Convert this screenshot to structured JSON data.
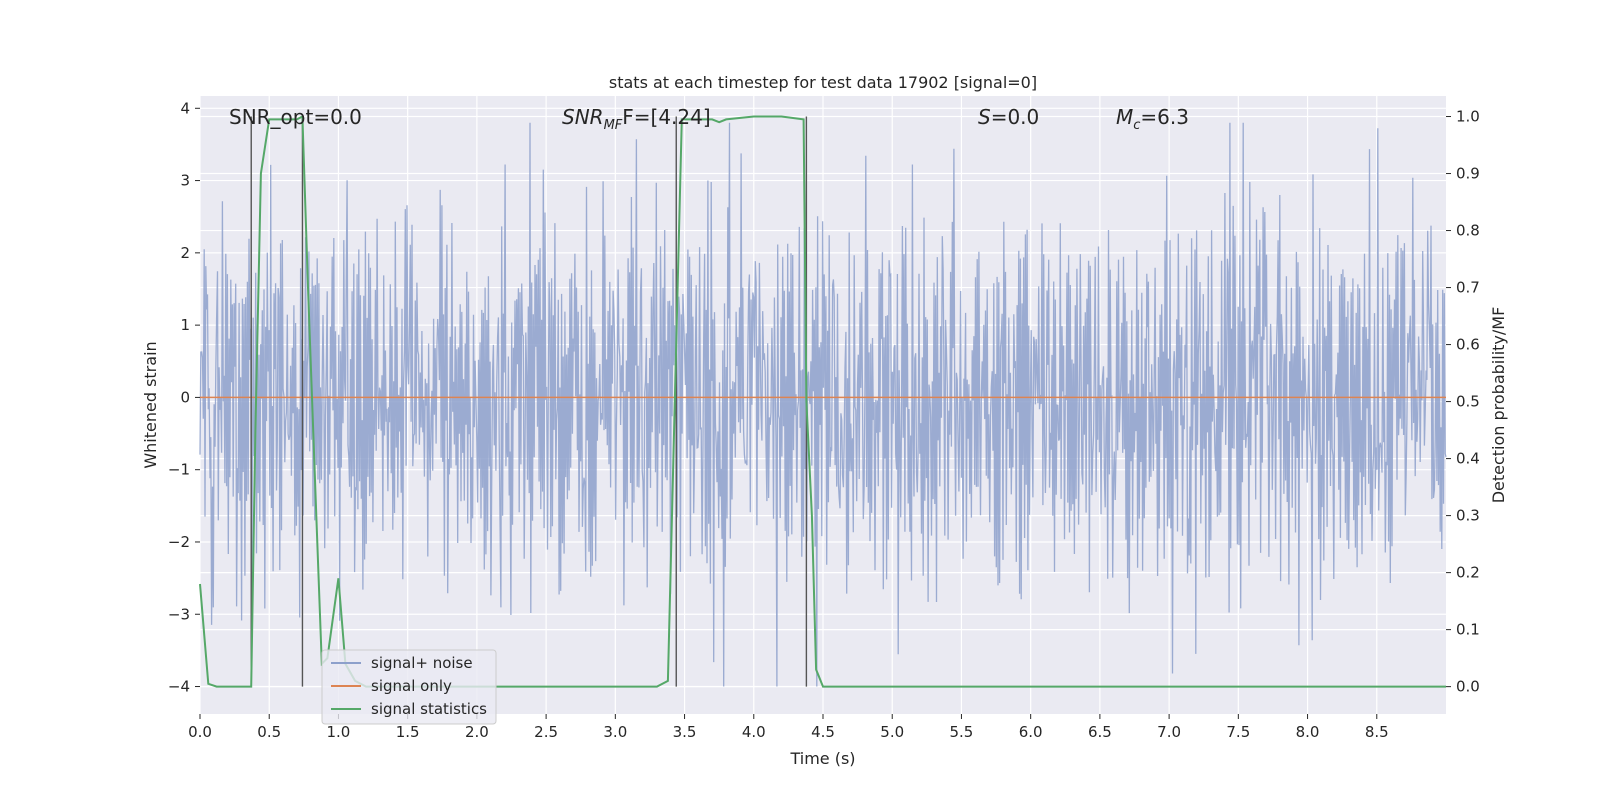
{
  "chart_data": {
    "type": "line",
    "title": "stats at each timestep for test data 17902 [signal=0]",
    "xlabel": "Time (s)",
    "ylabel_left": "Whitened strain",
    "ylabel_right": "Detection probability/MF",
    "xlim": [
      0,
      9
    ],
    "ylim_left": [
      -4.38,
      4.17
    ],
    "ylim_right": [
      -0.048,
      1.036
    ],
    "xticks": [
      "0.0",
      "0.5",
      "1.0",
      "1.5",
      "2.0",
      "2.5",
      "3.0",
      "3.5",
      "4.0",
      "4.5",
      "5.0",
      "5.5",
      "6.0",
      "6.5",
      "7.0",
      "7.5",
      "8.0",
      "8.5"
    ],
    "yticks_left": [
      "−4",
      "−3",
      "−2",
      "−1",
      "0",
      "1",
      "2",
      "3",
      "4"
    ],
    "yticks_right": [
      "0.0",
      "0.1",
      "0.2",
      "0.3",
      "0.4",
      "0.5",
      "0.6",
      "0.7",
      "0.8",
      "0.9",
      "1.0"
    ],
    "grid": true,
    "annotations": {
      "snr_opt": "SNR_opt=0.0",
      "snr_mf_label": "SNR",
      "snr_mf_sub": "MF",
      "snr_mf_value": "F=[4.24]",
      "s_label": "S",
      "s_value": "=0.0",
      "mc_label": "M",
      "mc_sub": "c",
      "mc_value": "=6.3"
    },
    "legend": {
      "position": "lower-left",
      "entries": [
        "signal+ noise",
        "signal only",
        "signal statistics"
      ]
    },
    "colors": {
      "noise": "#8da0cb",
      "signal_only": "#dd8452",
      "statistics": "#55a868",
      "markers": "#555555",
      "background": "#eaeaf2"
    },
    "series": [
      {
        "name": "signal+ noise",
        "axis": "left",
        "description_range": [
          -4.0,
          3.8
        ],
        "typical_range": [
          -2.2,
          2.5
        ]
      },
      {
        "name": "signal only",
        "axis": "left",
        "x": [
          0,
          9
        ],
        "y": [
          0,
          0
        ]
      },
      {
        "name": "signal statistics",
        "axis": "right",
        "x": [
          0.0,
          0.06,
          0.12,
          0.25,
          0.37,
          0.4,
          0.44,
          0.5,
          0.6,
          0.7,
          0.74,
          0.78,
          0.84,
          0.88,
          0.92,
          1.0,
          1.05,
          1.12,
          1.2,
          1.4,
          2.0,
          2.5,
          2.8,
          3.0,
          3.3,
          3.38,
          3.44,
          3.48,
          3.52,
          3.6,
          3.7,
          3.75,
          3.8,
          4.0,
          4.2,
          4.36,
          4.38,
          4.42,
          4.45,
          4.5,
          5.0,
          6.0,
          7.0,
          8.0,
          9.0
        ],
        "y": [
          0.18,
          0.005,
          0.0,
          0.0,
          0.0,
          0.45,
          0.9,
          0.995,
          0.995,
          0.995,
          1.0,
          0.7,
          0.3,
          0.04,
          0.05,
          0.19,
          0.04,
          0.01,
          0.0,
          0.0,
          0.0,
          0.0,
          0.0,
          0.0,
          0.0,
          0.01,
          0.6,
          0.995,
          0.995,
          0.995,
          0.995,
          0.99,
          0.995,
          1.0,
          1.0,
          0.995,
          0.5,
          0.3,
          0.03,
          0.0,
          0.0,
          0.0,
          0.0,
          0.0,
          0.0
        ]
      }
    ],
    "marker_lines_x": [
      0.37,
      0.74,
      3.44,
      4.38
    ]
  }
}
